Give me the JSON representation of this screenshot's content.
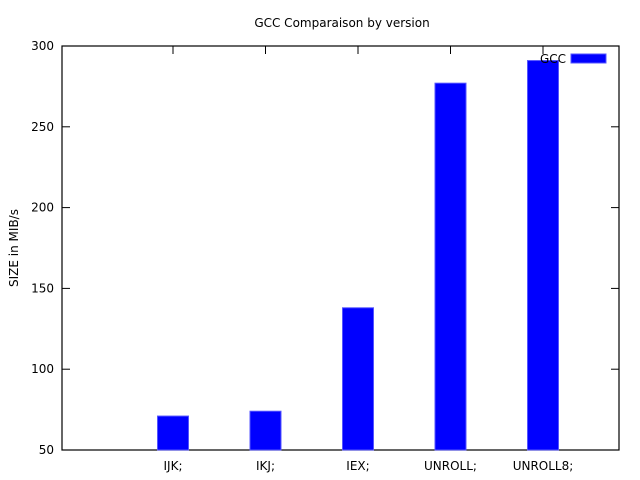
{
  "chart_data": {
    "type": "bar",
    "title": "GCC Comparaison by version",
    "xlabel": "",
    "ylabel": "SIZE in MIB/s",
    "categories": [
      "IJK;",
      "IKJ;",
      "IEX;",
      "UNROLL;",
      "UNROLL8;"
    ],
    "series": [
      {
        "name": "GCC",
        "values": [
          71,
          74,
          138,
          277,
          291
        ],
        "color": "#0000ff"
      }
    ],
    "ylim": [
      50,
      300
    ],
    "yticks": [
      50,
      100,
      150,
      200,
      250,
      300
    ],
    "grid": false,
    "legend_position": "top-right"
  }
}
